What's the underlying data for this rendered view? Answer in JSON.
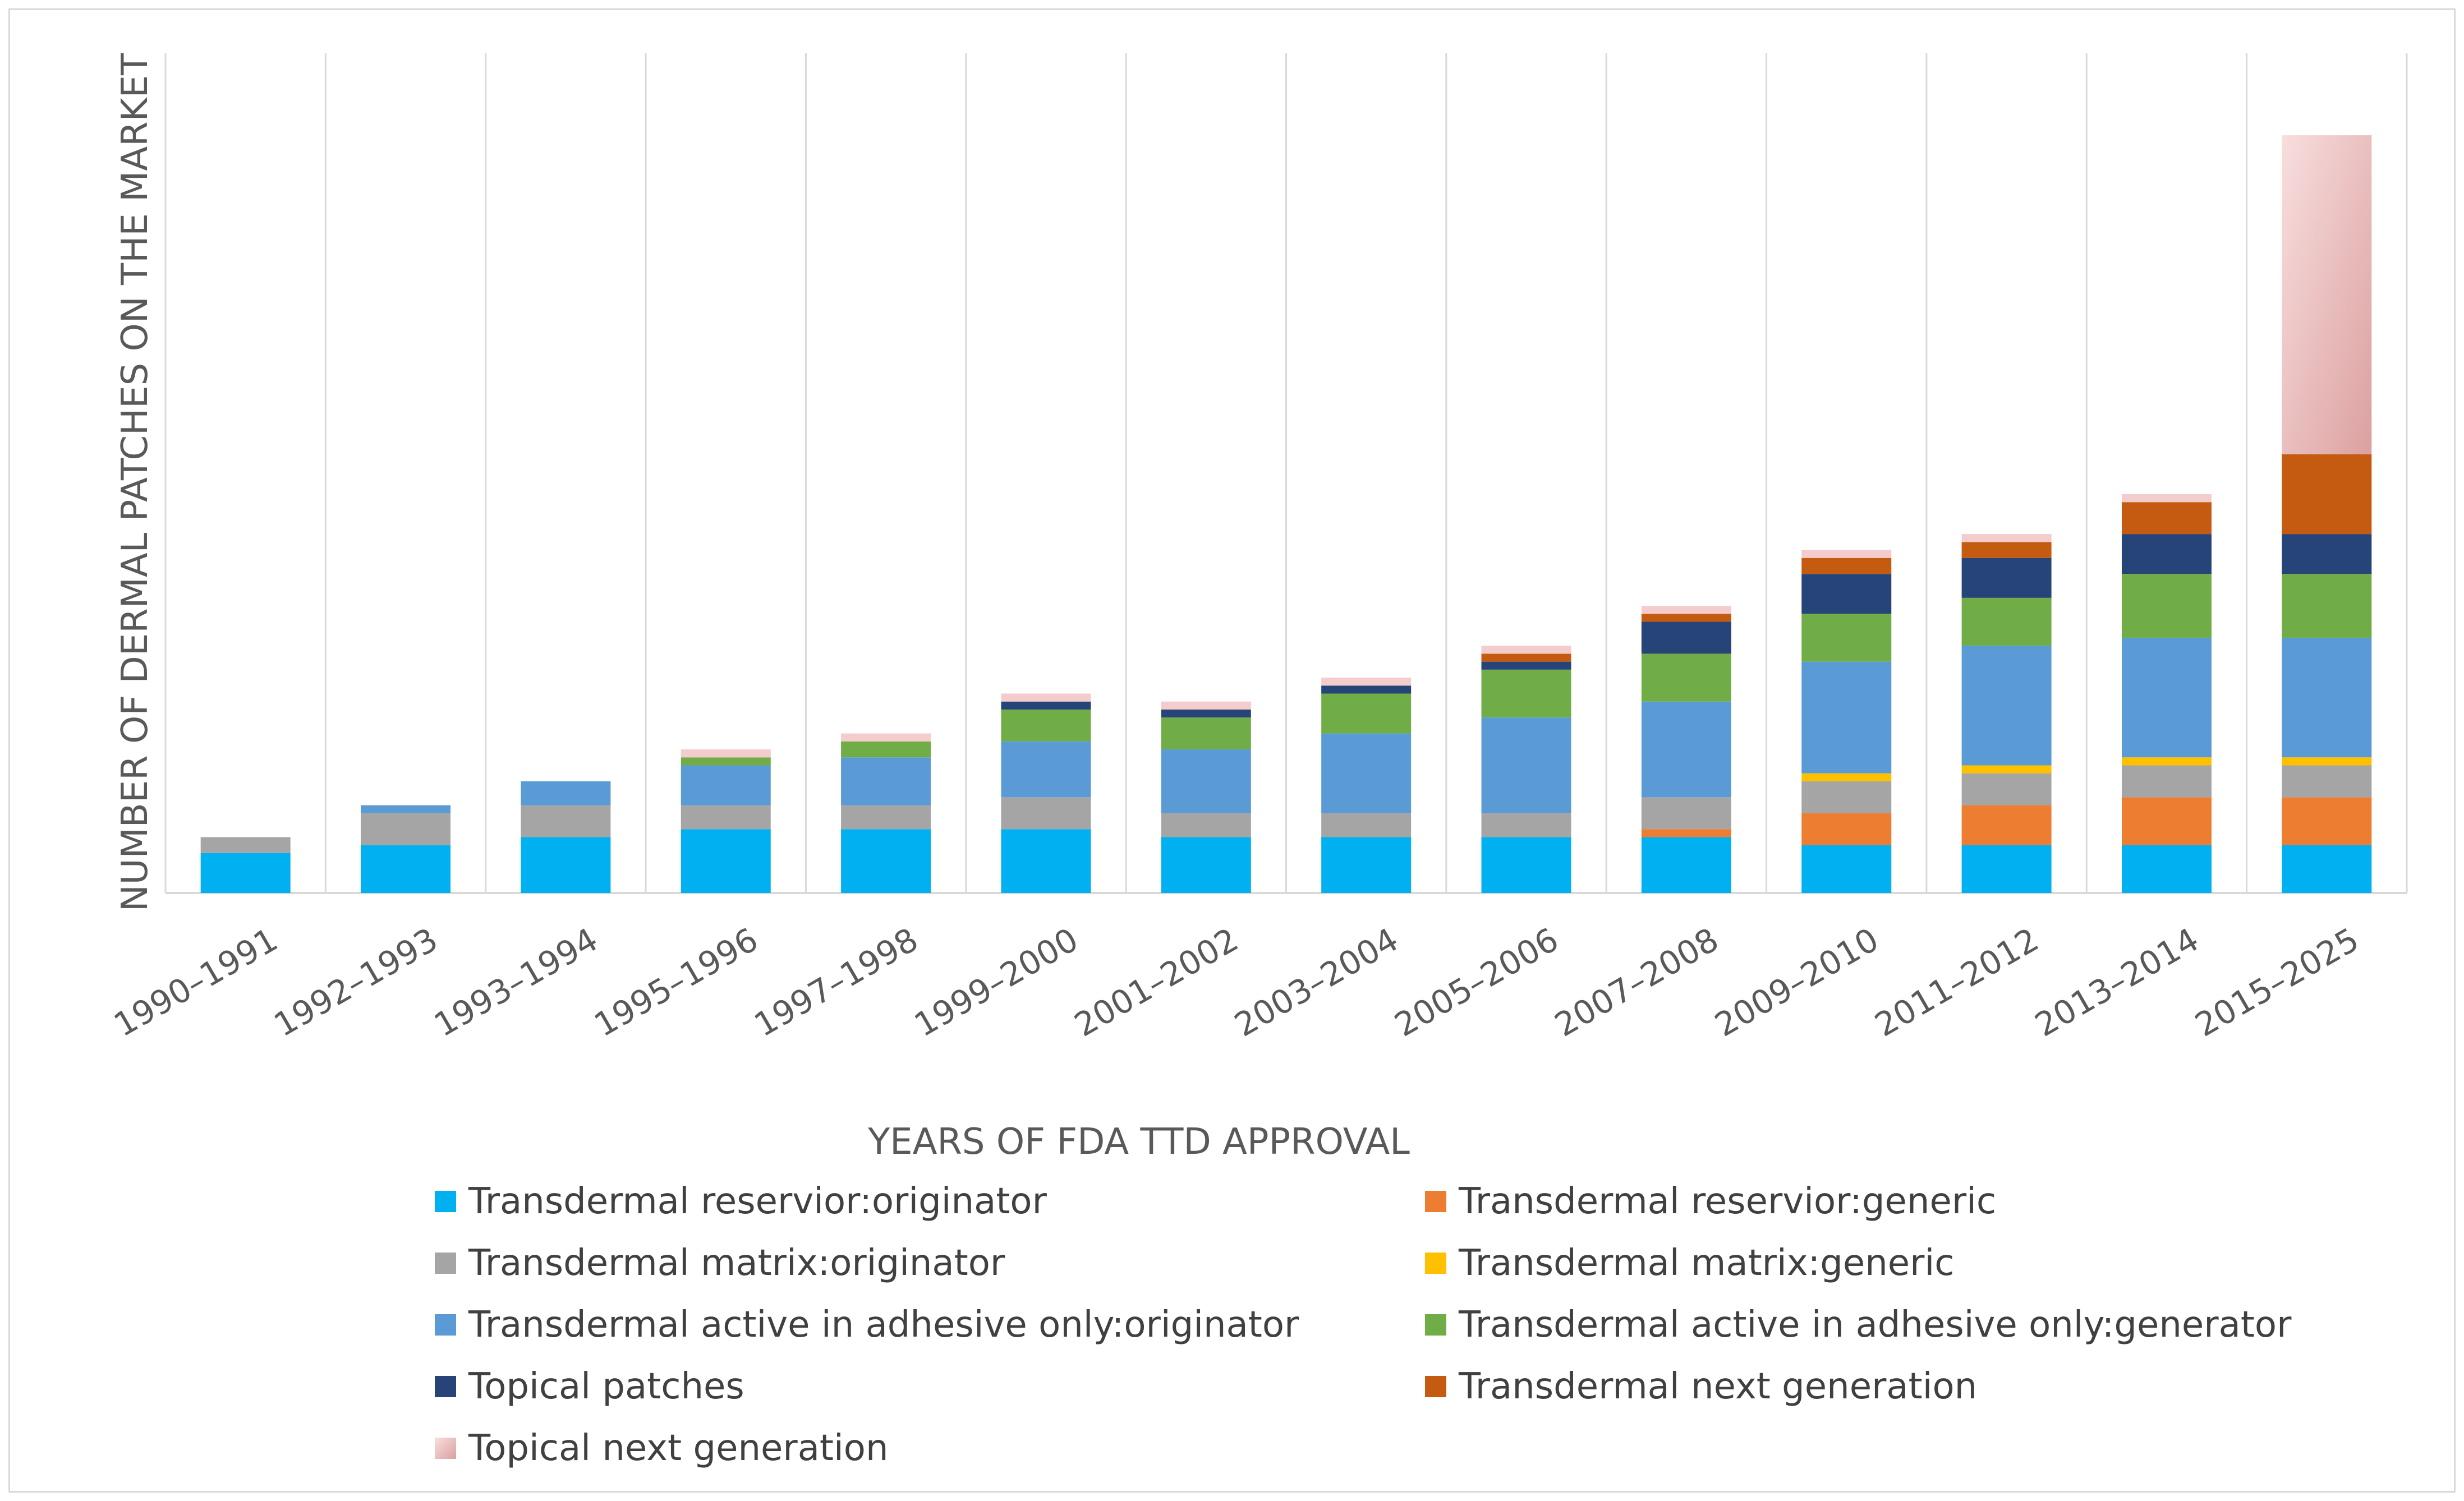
{
  "chart_data": {
    "type": "bar",
    "stacked": true,
    "title": "",
    "xlabel": "YEARS OF FDA TTD APPROVAL",
    "ylabel": "NUMBER OF DERMAL PATCHES ON THE MARKET",
    "ylim": [
      0,
      100
    ],
    "yticks_visible": false,
    "grid": "vertical",
    "categories": [
      "1990–1991",
      "1992–1993",
      "1993–1994",
      "1995–1996",
      "1997–1998",
      "1999–2000",
      "2001–2002",
      "2003–2004",
      "2005–2006",
      "2007–2008",
      "2009–2010",
      "2011–2012",
      "2013–2014",
      "2015–2025"
    ],
    "series": [
      {
        "name": "Transdermal reservior:originator",
        "color": "#00b0f0",
        "values": [
          5,
          6,
          7,
          8,
          8,
          8,
          7,
          7,
          7,
          7,
          6,
          6,
          6,
          6
        ]
      },
      {
        "name": "Transdermal reservior:generic",
        "color": "#ed7d31",
        "values": [
          0,
          0,
          0,
          0,
          0,
          0,
          0,
          0,
          0,
          1,
          4,
          5,
          6,
          6
        ]
      },
      {
        "name": "Transdermal matrix:originator",
        "color": "#a5a5a5",
        "values": [
          2,
          4,
          4,
          3,
          3,
          4,
          3,
          3,
          3,
          4,
          4,
          4,
          4,
          4
        ]
      },
      {
        "name": "Transdermal matrix:generic",
        "color": "#ffc000",
        "values": [
          0,
          0,
          0,
          0,
          0,
          0,
          0,
          0,
          0,
          0,
          1,
          1,
          1,
          1
        ]
      },
      {
        "name": "Transdermal active in adhesive only:originator",
        "color": "#5b9bd5",
        "values": [
          0,
          1,
          3,
          5,
          6,
          7,
          8,
          10,
          12,
          12,
          14,
          15,
          15,
          15
        ]
      },
      {
        "name": "Transdermal active in adhesive only:generator",
        "color": "#70ad47",
        "values": [
          0,
          0,
          0,
          1,
          2,
          4,
          4,
          5,
          6,
          6,
          6,
          6,
          8,
          8
        ]
      },
      {
        "name": "Topical patches",
        "color": "#264478",
        "values": [
          0,
          0,
          0,
          0,
          0,
          1,
          1,
          1,
          1,
          4,
          5,
          5,
          5,
          5
        ]
      },
      {
        "name": "Transdermal next generation",
        "color": "#c55a11",
        "values": [
          0,
          0,
          0,
          0,
          0,
          0,
          0,
          0,
          1,
          1,
          2,
          2,
          4,
          10
        ]
      },
      {
        "name": "Topical next generation",
        "color": "#f4cccc",
        "values": [
          0,
          0,
          0,
          1,
          1,
          1,
          1,
          1,
          1,
          1,
          1,
          1,
          1,
          40
        ]
      }
    ],
    "legend": "bottom"
  }
}
